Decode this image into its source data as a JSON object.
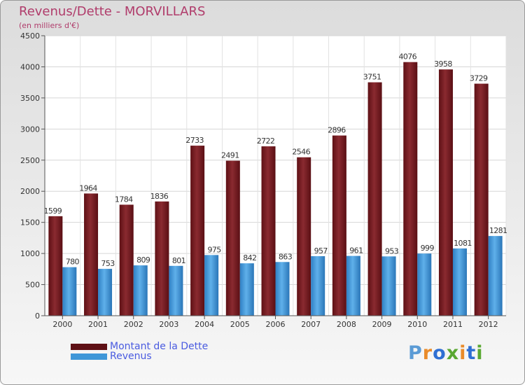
{
  "header": {
    "title": "Revenus/Dette - MORVILLARS",
    "subtitle": "(en milliers d'€)"
  },
  "logo": {
    "text": "Proxiti",
    "colors": [
      "#5b9bd5",
      "#e98b2a",
      "#2f6fd3",
      "#5aa832",
      "#e98b2a",
      "#2f6fd3",
      "#5aa832"
    ]
  },
  "chart_data": {
    "type": "bar",
    "title": "Revenus/Dette - MORVILLARS",
    "ylabel": "(en milliers d'€)",
    "xlabel": "",
    "categories": [
      "2000",
      "2001",
      "2002",
      "2003",
      "2004",
      "2005",
      "2006",
      "2007",
      "2008",
      "2009",
      "2010",
      "2011",
      "2012"
    ],
    "ylim": [
      0,
      4500
    ],
    "yticks": [
      0,
      500,
      1000,
      1500,
      2000,
      2500,
      3000,
      3500,
      4000,
      4500
    ],
    "grid": true,
    "legend_position": "bottom-left",
    "series": [
      {
        "name": "Montant de la Dette",
        "color": "#7a1f24",
        "values": [
          1599,
          1964,
          1784,
          1836,
          2733,
          2491,
          2722,
          2546,
          2896,
          3751,
          4076,
          3958,
          3729
        ]
      },
      {
        "name": "Revenus",
        "color": "#3f97d8",
        "values": [
          780,
          753,
          809,
          801,
          975,
          842,
          863,
          957,
          961,
          953,
          999,
          1081,
          1281
        ]
      }
    ]
  }
}
